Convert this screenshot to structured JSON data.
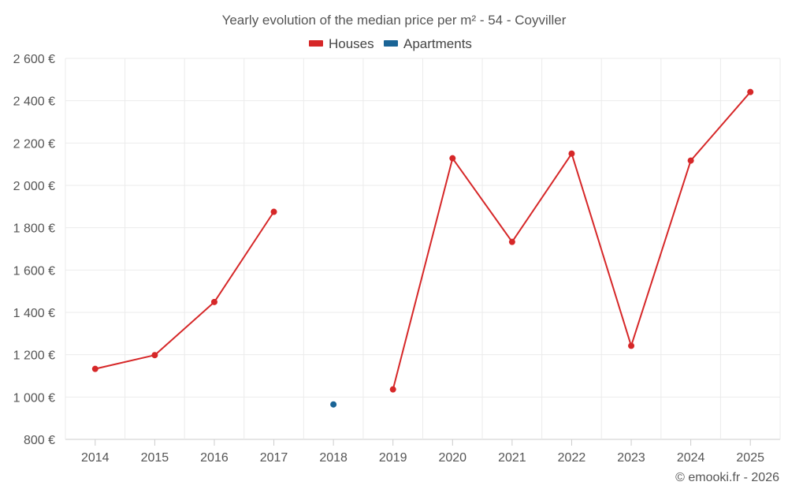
{
  "chart_data": {
    "type": "line",
    "title": "Yearly evolution of the median price per m² - 54 - Coyviller",
    "categories": [
      "2014",
      "2015",
      "2016",
      "2017",
      "2018",
      "2019",
      "2020",
      "2021",
      "2022",
      "2023",
      "2024",
      "2025"
    ],
    "series": [
      {
        "name": "Houses",
        "color": "#d62728",
        "values": [
          1133,
          1198,
          1449,
          1875,
          null,
          1036,
          2128,
          1733,
          2150,
          1242,
          2117,
          2441
        ]
      },
      {
        "name": "Apartments",
        "color": "#1a6496",
        "values": [
          null,
          null,
          null,
          null,
          965,
          null,
          null,
          null,
          null,
          null,
          null,
          null
        ]
      }
    ],
    "y_ticks": [
      "800 €",
      "1 000 €",
      "1 200 €",
      "1 400 €",
      "1 600 €",
      "1 800 €",
      "2 000 €",
      "2 200 €",
      "2 400 €",
      "2 600 €"
    ],
    "ylim": [
      800,
      2600
    ],
    "y_tick_step": 200,
    "grid": true,
    "legend_position": "top-center",
    "credit": "© emooki.fr - 2026"
  }
}
